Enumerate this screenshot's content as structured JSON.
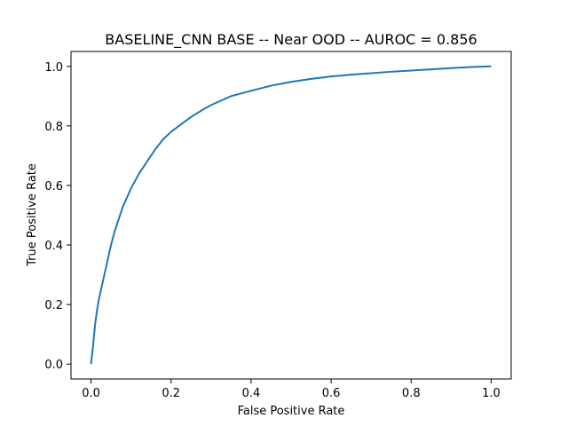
{
  "chart_data": {
    "type": "line",
    "title": "BASELINE_CNN BASE -- Near OOD -- AUROC = 0.856",
    "xlabel": "False Positive Rate",
    "ylabel": "True Positive Rate",
    "xlim": [
      -0.05,
      1.05
    ],
    "ylim": [
      -0.05,
      1.05
    ],
    "xticks": [
      0.0,
      0.2,
      0.4,
      0.6,
      0.8,
      1.0
    ],
    "yticks": [
      0.0,
      0.2,
      0.4,
      0.6,
      0.8,
      1.0
    ],
    "xtick_labels": [
      "0.0",
      "0.2",
      "0.4",
      "0.6",
      "0.8",
      "1.0"
    ],
    "ytick_labels": [
      "0.0",
      "0.2",
      "0.4",
      "0.6",
      "0.8",
      "1.0"
    ],
    "grid": false,
    "line_color": "#1f77b4",
    "series": [
      {
        "x": [
          0.0,
          0.005,
          0.01,
          0.015,
          0.02,
          0.03,
          0.04,
          0.05,
          0.06,
          0.07,
          0.08,
          0.09,
          0.1,
          0.12,
          0.14,
          0.16,
          0.18,
          0.2,
          0.22,
          0.25,
          0.28,
          0.3,
          0.35,
          0.4,
          0.45,
          0.5,
          0.55,
          0.6,
          0.65,
          0.7,
          0.75,
          0.8,
          0.85,
          0.9,
          0.95,
          1.0
        ],
        "y": [
          0.0,
          0.06,
          0.13,
          0.18,
          0.22,
          0.28,
          0.34,
          0.4,
          0.45,
          0.49,
          0.53,
          0.56,
          0.59,
          0.64,
          0.68,
          0.72,
          0.755,
          0.78,
          0.8,
          0.83,
          0.855,
          0.87,
          0.9,
          0.918,
          0.935,
          0.948,
          0.958,
          0.966,
          0.972,
          0.977,
          0.982,
          0.986,
          0.99,
          0.994,
          0.998,
          1.0
        ]
      }
    ]
  }
}
